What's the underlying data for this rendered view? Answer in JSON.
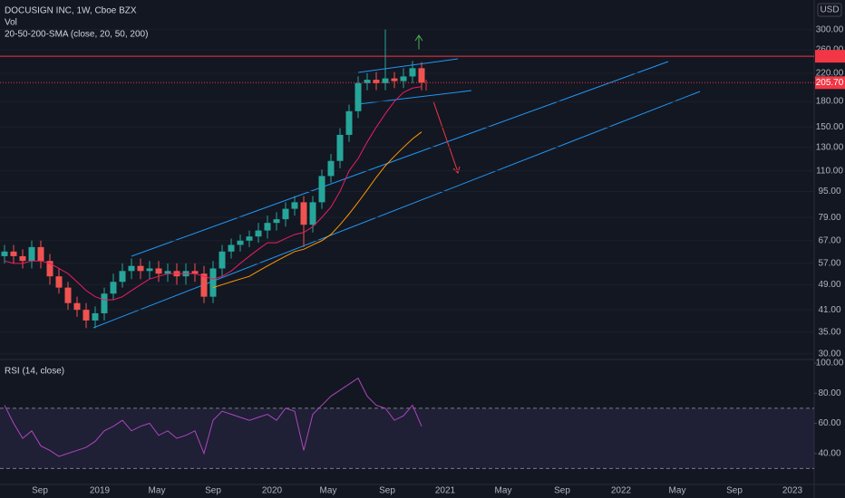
{
  "chart_data": [
    {
      "type": "candlestick",
      "title": "DOCUSIGN INC, 1W, Cboe BZX",
      "indicators": [
        "Vol",
        "20-50-200-SMA (close, 20, 50, 200)"
      ],
      "currency": "USD",
      "log_scale": true,
      "grid": true,
      "up_color": "#26a69a",
      "down_color": "#ef5350",
      "open": [
        60,
        62,
        60,
        58,
        64,
        58,
        52,
        48,
        43,
        41,
        38,
        40,
        46,
        50,
        54,
        56,
        54,
        55,
        53,
        54,
        52,
        54,
        53,
        45,
        55,
        62,
        65,
        67,
        69,
        72,
        76,
        78,
        84,
        88,
        75,
        88,
        106,
        118,
        142,
        168,
        205,
        210,
        205,
        212,
        208,
        215,
        228
      ],
      "high": [
        65,
        65,
        63,
        67,
        67,
        61,
        55,
        50,
        45,
        43,
        42,
        48,
        53,
        57,
        59,
        59,
        58,
        58,
        57,
        57,
        57,
        57,
        56,
        58,
        65,
        68,
        70,
        72,
        76,
        80,
        82,
        88,
        92,
        92,
        92,
        111,
        124,
        149,
        176,
        215,
        220,
        222,
        300,
        222,
        228,
        240,
        238
      ],
      "low": [
        57,
        57,
        55,
        55,
        55,
        49,
        46,
        41,
        39,
        36,
        36,
        38,
        44,
        48,
        51,
        51,
        51,
        50,
        50,
        49,
        49,
        50,
        43,
        43,
        52,
        59,
        62,
        64,
        66,
        68,
        72,
        74,
        80,
        64,
        71,
        84,
        101,
        112,
        135,
        160,
        195,
        195,
        195,
        198,
        198,
        205,
        195
      ],
      "close": [
        62,
        60,
        58,
        64,
        58,
        52,
        48,
        43,
        41,
        38,
        40,
        46,
        50,
        54,
        56,
        54,
        55,
        53,
        54,
        52,
        54,
        53,
        45,
        55,
        62,
        65,
        67,
        69,
        72,
        76,
        78,
        84,
        88,
        75,
        88,
        106,
        118,
        142,
        168,
        205,
        210,
        205,
        212,
        208,
        215,
        228,
        205.7
      ],
      "sma": [
        {
          "color": "#e91e63",
          "values": [
            58,
            57,
            57,
            58,
            58,
            57,
            55,
            53,
            50,
            47,
            45,
            44,
            44,
            45,
            47,
            49,
            51,
            52,
            53,
            53,
            53,
            53,
            52,
            51,
            52,
            54,
            57,
            60,
            63,
            66,
            66,
            68,
            70,
            71,
            74,
            79,
            85,
            95,
            110,
            120,
            135,
            150,
            165,
            180,
            192,
            198,
            200
          ]
        },
        {
          "color": "#ff9800",
          "values": [
            null,
            null,
            null,
            null,
            null,
            null,
            null,
            null,
            null,
            null,
            null,
            null,
            null,
            null,
            null,
            null,
            null,
            null,
            null,
            null,
            null,
            null,
            null,
            48,
            49,
            50,
            51,
            52,
            54,
            56,
            58,
            60,
            62,
            63,
            65,
            67,
            70,
            75,
            81,
            88,
            96,
            105,
            114,
            122,
            130,
            138,
            145
          ]
        }
      ],
      "price_lines": [
        {
          "value": 248.16,
          "color": "#f23645",
          "style": "solid"
        },
        {
          "value": 205.7,
          "label": "205.70",
          "color": "#f23645",
          "style": "dotted"
        }
      ],
      "ylim": [
        29,
        370
      ],
      "yticks": [
        {
          "value": 30,
          "label": "30.00"
        },
        {
          "value": 35,
          "label": "35.00"
        },
        {
          "value": 41,
          "label": "41.00"
        },
        {
          "value": 49,
          "label": "49.00"
        },
        {
          "value": 57,
          "label": "57.00"
        },
        {
          "value": 67,
          "label": "67.00"
        },
        {
          "value": 79,
          "label": "79.00"
        },
        {
          "value": 95,
          "label": "95.00"
        },
        {
          "value": 110,
          "label": "110.00"
        },
        {
          "value": 130,
          "label": "130.00"
        },
        {
          "value": 150,
          "label": "150.00"
        },
        {
          "value": 180,
          "label": "180.00"
        },
        {
          "value": 220,
          "label": "220.00"
        },
        {
          "value": 260,
          "label": "260.00"
        },
        {
          "value": 300,
          "label": "300.00"
        }
      ],
      "x_labels": [
        "Sep",
        "2019",
        "May",
        "Sep",
        "2020",
        "May",
        "Sep",
        "2021",
        "May",
        "Sep",
        "2022",
        "May",
        "Sep",
        "2023"
      ]
    },
    {
      "type": "line",
      "title": "RSI (14, close)",
      "color": "#ab47bc",
      "values": [
        72,
        60,
        50,
        55,
        45,
        42,
        38,
        40,
        42,
        44,
        48,
        55,
        58,
        62,
        55,
        58,
        60,
        52,
        55,
        50,
        52,
        55,
        40,
        62,
        68,
        66,
        64,
        62,
        64,
        66,
        62,
        70,
        68,
        42,
        66,
        72,
        78,
        82,
        86,
        90,
        78,
        72,
        70,
        62,
        65,
        72,
        58
      ],
      "bands": [
        30,
        70
      ],
      "ylim": [
        20,
        100
      ],
      "yticks": [
        {
          "value": 40,
          "label": "40.00"
        },
        {
          "value": 60,
          "label": "60.00"
        },
        {
          "value": 80,
          "label": "80.00"
        },
        {
          "value": 100,
          "label": "100.00"
        }
      ]
    }
  ]
}
